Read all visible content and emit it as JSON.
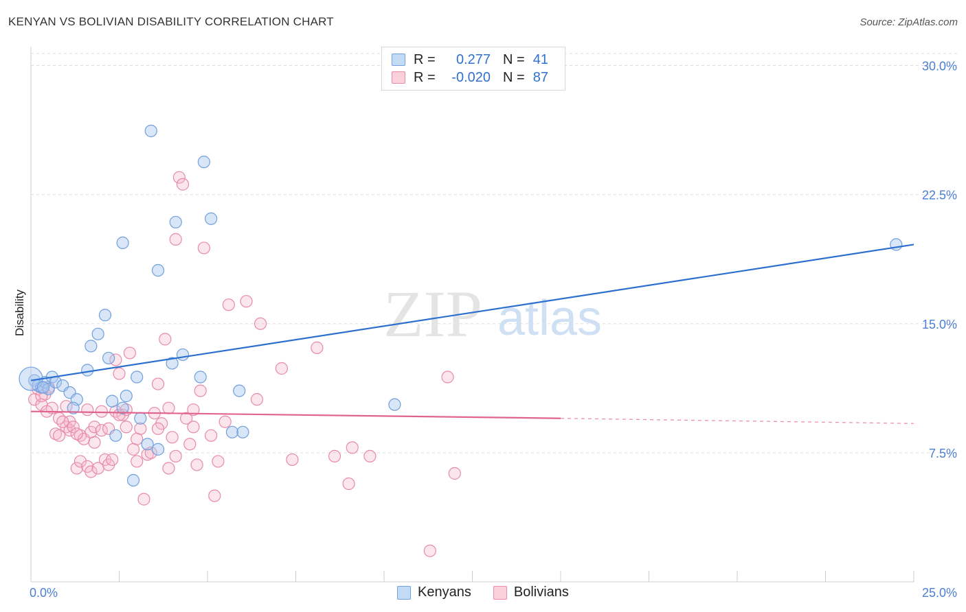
{
  "title": "KENYAN VS BOLIVIAN DISABILITY CORRELATION CHART",
  "source": "Source: ZipAtlas.com",
  "watermark": {
    "zip": "ZIP",
    "atlas": "atlas"
  },
  "legend": {
    "kenyans": {
      "r_label": "R =",
      "r_value": "0.277",
      "n_label": "N =",
      "n_value": "41"
    },
    "bolivians": {
      "r_label": "R =",
      "r_value": "-0.020",
      "n_label": "N =",
      "n_value": "87"
    }
  },
  "series_labels": {
    "kenyans": "Kenyans",
    "bolivians": "Bolivians"
  },
  "colors": {
    "kenyans_fill": "#a8c8f0",
    "kenyans_stroke": "#6f9fdc",
    "kenyans_line": "#2b6fcf",
    "bolivians_fill": "#f5b8cb",
    "bolivians_stroke": "#e68aa8",
    "bolivians_line": "#e0648e",
    "tick_text": "#4a7fd4",
    "grid": "#dddddd"
  },
  "chart_data": {
    "type": "scatter",
    "title": "KENYAN VS BOLIVIAN DISABILITY CORRELATION CHART",
    "ylabel": "Disability",
    "xlabel": "",
    "xlim": [
      0,
      25
    ],
    "ylim": [
      0,
      30.7
    ],
    "x_tick_labels": [
      {
        "value": 0,
        "label": "0.0%"
      },
      {
        "value": 25,
        "label": "25.0%"
      }
    ],
    "y_tick_labels": [
      {
        "value": 7.5,
        "label": "7.5%"
      },
      {
        "value": 15.0,
        "label": "15.0%"
      },
      {
        "value": 22.5,
        "label": "22.5%"
      },
      {
        "value": 30.0,
        "label": "30.0%"
      }
    ],
    "grid": true,
    "legend_position": "top-center",
    "series": [
      {
        "name": "Kenyans",
        "points": [
          [
            0.1,
            11.7
          ],
          [
            0.2,
            11.4
          ],
          [
            0.3,
            11.3
          ],
          [
            0.4,
            11.6
          ],
          [
            0.5,
            11.2
          ],
          [
            0.6,
            11.9
          ],
          [
            0.7,
            11.6
          ],
          [
            0.9,
            11.4
          ],
          [
            1.1,
            11.0
          ],
          [
            1.3,
            10.6
          ],
          [
            1.2,
            10.1
          ],
          [
            1.6,
            12.3
          ],
          [
            1.7,
            13.7
          ],
          [
            1.9,
            14.4
          ],
          [
            2.1,
            15.5
          ],
          [
            2.2,
            13.0
          ],
          [
            2.3,
            10.5
          ],
          [
            2.4,
            8.5
          ],
          [
            2.6,
            10.1
          ],
          [
            2.7,
            10.8
          ],
          [
            2.6,
            19.7
          ],
          [
            3.0,
            11.9
          ],
          [
            3.1,
            9.5
          ],
          [
            3.3,
            8.0
          ],
          [
            3.4,
            26.2
          ],
          [
            3.6,
            7.7
          ],
          [
            3.6,
            18.1
          ],
          [
            2.9,
            5.9
          ],
          [
            4.0,
            12.7
          ],
          [
            4.1,
            20.9
          ],
          [
            4.3,
            13.2
          ],
          [
            4.8,
            11.9
          ],
          [
            4.9,
            24.4
          ],
          [
            5.1,
            21.1
          ],
          [
            5.7,
            8.7
          ],
          [
            5.9,
            11.1
          ],
          [
            6.0,
            8.7
          ],
          [
            10.3,
            10.3
          ],
          [
            24.5,
            19.6
          ],
          [
            0.0,
            11.8
          ],
          [
            0.35,
            11.3
          ]
        ],
        "trend": {
          "x0": 0,
          "y0": 11.7,
          "x1": 25,
          "y1": 19.6
        }
      },
      {
        "name": "Bolivians",
        "points": [
          [
            0.1,
            10.6
          ],
          [
            0.2,
            11.2
          ],
          [
            0.3,
            10.3
          ],
          [
            0.4,
            10.9
          ],
          [
            0.5,
            11.3
          ],
          [
            0.6,
            10.1
          ],
          [
            0.7,
            8.6
          ],
          [
            0.8,
            8.5
          ],
          [
            0.8,
            9.5
          ],
          [
            1.0,
            9.0
          ],
          [
            1.0,
            10.2
          ],
          [
            1.1,
            8.8
          ],
          [
            1.1,
            9.3
          ],
          [
            1.2,
            9.0
          ],
          [
            1.3,
            6.6
          ],
          [
            1.4,
            7.0
          ],
          [
            1.4,
            8.5
          ],
          [
            1.5,
            8.3
          ],
          [
            1.6,
            6.7
          ],
          [
            1.6,
            10.0
          ],
          [
            1.7,
            8.7
          ],
          [
            1.7,
            6.4
          ],
          [
            1.8,
            9.0
          ],
          [
            1.9,
            6.6
          ],
          [
            2.0,
            8.8
          ],
          [
            2.0,
            9.9
          ],
          [
            2.1,
            7.1
          ],
          [
            2.2,
            6.8
          ],
          [
            2.2,
            8.9
          ],
          [
            2.3,
            7.1
          ],
          [
            2.4,
            9.9
          ],
          [
            2.4,
            12.9
          ],
          [
            2.5,
            12.1
          ],
          [
            2.6,
            9.7
          ],
          [
            2.7,
            9.0
          ],
          [
            2.7,
            10.0
          ],
          [
            2.8,
            13.3
          ],
          [
            2.9,
            7.7
          ],
          [
            3.0,
            7.0
          ],
          [
            3.1,
            8.9
          ],
          [
            3.2,
            4.8
          ],
          [
            3.3,
            7.4
          ],
          [
            3.4,
            7.5
          ],
          [
            3.5,
            9.8
          ],
          [
            3.6,
            11.5
          ],
          [
            3.7,
            9.2
          ],
          [
            3.8,
            14.1
          ],
          [
            3.9,
            10.1
          ],
          [
            3.9,
            6.6
          ],
          [
            4.1,
            7.3
          ],
          [
            4.1,
            19.9
          ],
          [
            4.2,
            23.5
          ],
          [
            4.3,
            23.1
          ],
          [
            4.4,
            9.5
          ],
          [
            4.5,
            8.0
          ],
          [
            4.6,
            10.0
          ],
          [
            4.7,
            6.8
          ],
          [
            4.8,
            11.1
          ],
          [
            4.9,
            19.4
          ],
          [
            5.1,
            8.5
          ],
          [
            5.2,
            5.0
          ],
          [
            5.3,
            7.0
          ],
          [
            5.5,
            9.3
          ],
          [
            5.6,
            16.1
          ],
          [
            6.1,
            16.3
          ],
          [
            6.4,
            10.6
          ],
          [
            6.5,
            15.0
          ],
          [
            7.1,
            12.4
          ],
          [
            7.4,
            7.1
          ],
          [
            8.1,
            13.6
          ],
          [
            8.6,
            7.3
          ],
          [
            9.0,
            5.7
          ],
          [
            9.1,
            7.8
          ],
          [
            9.6,
            7.3
          ],
          [
            11.3,
            1.8
          ],
          [
            11.8,
            11.9
          ],
          [
            12.0,
            6.3
          ],
          [
            0.3,
            10.8
          ],
          [
            0.9,
            9.3
          ],
          [
            1.3,
            8.6
          ],
          [
            1.8,
            8.1
          ],
          [
            2.5,
            9.7
          ],
          [
            3.0,
            8.3
          ],
          [
            3.6,
            8.9
          ],
          [
            4.0,
            8.4
          ],
          [
            4.6,
            9.0
          ],
          [
            0.45,
            9.9
          ]
        ],
        "trend": {
          "x0": 0,
          "y0": 9.9,
          "x1": 15,
          "y1": 9.5
        },
        "trend_dashed": {
          "x0": 15,
          "y0": 9.5,
          "x1": 25,
          "y1": 9.2
        }
      }
    ]
  }
}
